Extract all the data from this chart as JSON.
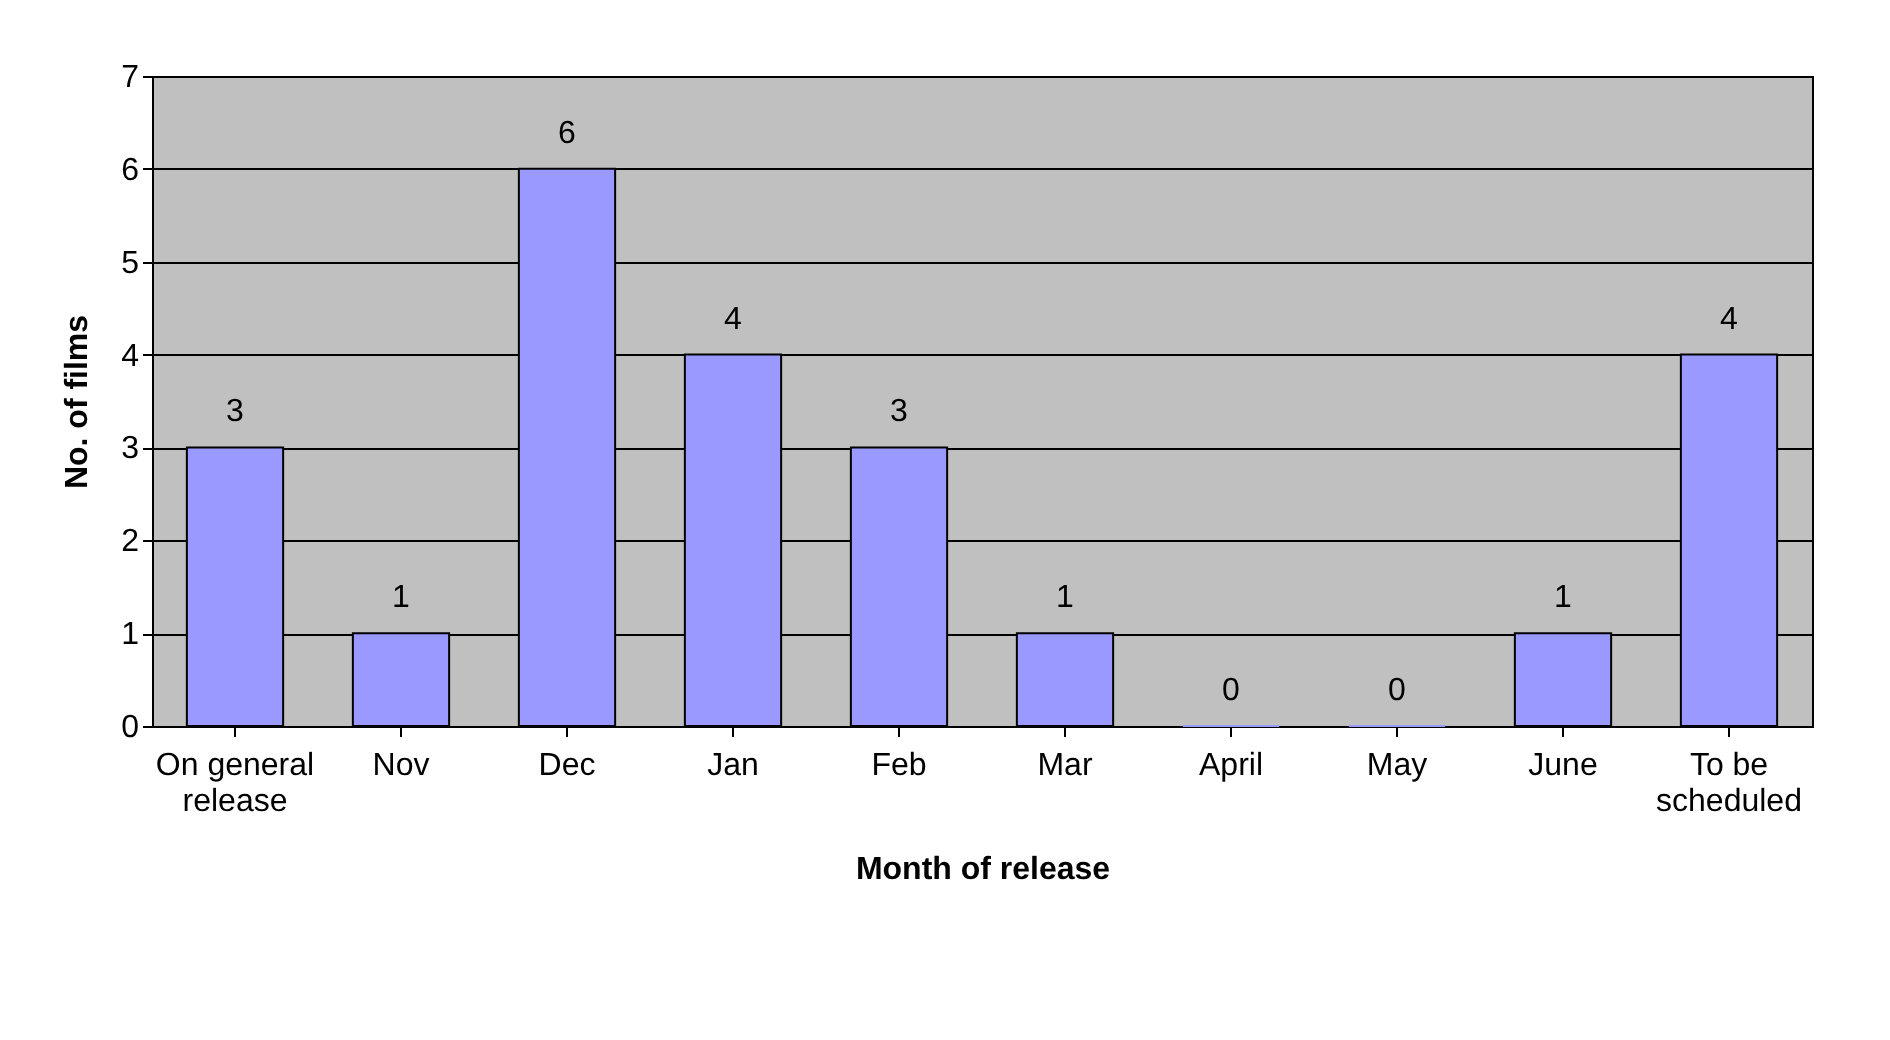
{
  "chart_data": {
    "type": "bar",
    "categories": [
      "On general release",
      "Nov",
      "Dec",
      "Jan",
      "Feb",
      "Mar",
      "April",
      "May",
      "June",
      "To be scheduled"
    ],
    "values": [
      3,
      1,
      6,
      4,
      3,
      1,
      0,
      0,
      1,
      4
    ],
    "color": "#9999ff",
    "xlabel": "Month of release",
    "ylabel": "No. of films",
    "ylim": [
      0,
      7
    ],
    "yticks": [
      0,
      1,
      2,
      3,
      4,
      5,
      6,
      7
    ],
    "grid": "y",
    "data_labels": true
  }
}
